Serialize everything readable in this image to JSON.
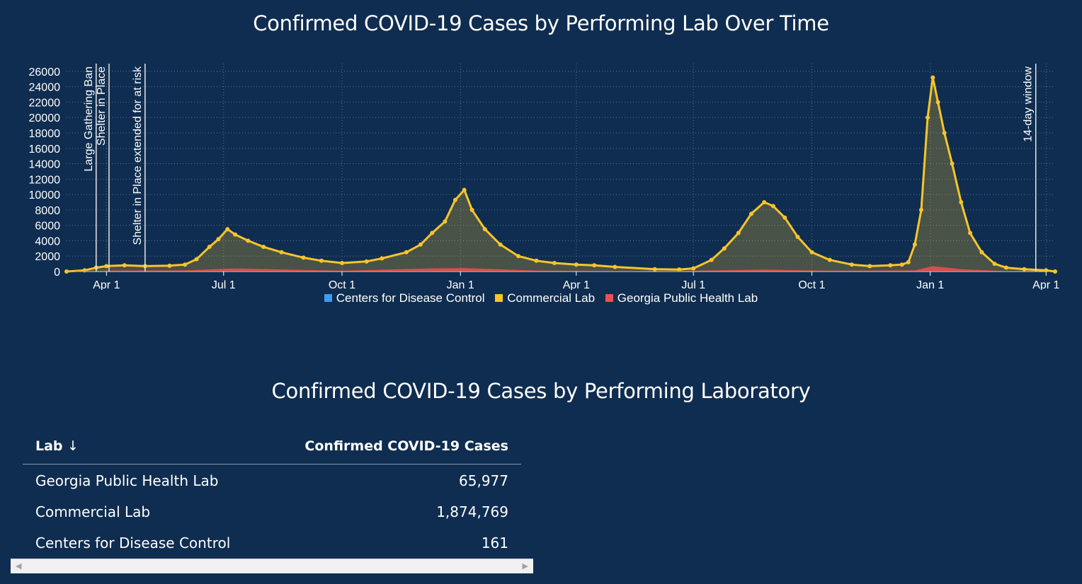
{
  "chart_title": "Confirmed COVID-19 Cases by Performing Lab Over Time",
  "table_title": "Confirmed COVID-19 Cases by Performing Laboratory",
  "chart_data": {
    "type": "area",
    "title": "Confirmed COVID-19 Cases by Performing Lab Over Time",
    "x_ticks": [
      "Apr 1",
      "Jul 1",
      "Oct 1",
      "Jan 1",
      "Apr 1",
      "Jul 1",
      "Oct 1",
      "Jan 1",
      "Apr 1"
    ],
    "y_ticks": [
      "0",
      "2000",
      "4000",
      "6000",
      "8000",
      "10000",
      "12000",
      "14000",
      "16000",
      "18000",
      "20000",
      "22000",
      "24000",
      "26000"
    ],
    "ylim": [
      0,
      27000
    ],
    "xlim": [
      "2020-03-01",
      "2022-04-08"
    ],
    "grid": true,
    "legend_position": "bottom",
    "annotations": [
      {
        "date": "2020-03-24",
        "label": "Large Gathering Ban"
      },
      {
        "date": "2020-04-03",
        "label": "Shelter in Place"
      },
      {
        "date": "2020-05-01",
        "label": "Shelter in Place extended for at risk"
      },
      {
        "date": "2022-03-24",
        "label": "14-day window"
      }
    ],
    "series": [
      {
        "name": "Centers for Disease Control",
        "color": "#3d9df0",
        "points": [
          [
            "2020-03-01",
            0
          ],
          [
            "2022-04-08",
            0
          ]
        ]
      },
      {
        "name": "Commercial Lab",
        "color": "#f7c52b",
        "points": [
          [
            "2020-03-01",
            0
          ],
          [
            "2020-03-15",
            150
          ],
          [
            "2020-03-24",
            500
          ],
          [
            "2020-04-01",
            700
          ],
          [
            "2020-04-15",
            800
          ],
          [
            "2020-05-01",
            700
          ],
          [
            "2020-05-20",
            750
          ],
          [
            "2020-06-01",
            900
          ],
          [
            "2020-06-10",
            1600
          ],
          [
            "2020-06-20",
            3200
          ],
          [
            "2020-06-27",
            4200
          ],
          [
            "2020-07-04",
            5500
          ],
          [
            "2020-07-10",
            4800
          ],
          [
            "2020-07-20",
            4000
          ],
          [
            "2020-08-01",
            3200
          ],
          [
            "2020-08-15",
            2500
          ],
          [
            "2020-09-01",
            1800
          ],
          [
            "2020-09-15",
            1400
          ],
          [
            "2020-10-01",
            1100
          ],
          [
            "2020-10-20",
            1300
          ],
          [
            "2020-11-01",
            1700
          ],
          [
            "2020-11-20",
            2500
          ],
          [
            "2020-12-01",
            3500
          ],
          [
            "2020-12-10",
            5000
          ],
          [
            "2020-12-20",
            6500
          ],
          [
            "2020-12-28",
            9300
          ],
          [
            "2021-01-04",
            10600
          ],
          [
            "2021-01-10",
            8000
          ],
          [
            "2021-01-20",
            5500
          ],
          [
            "2021-02-01",
            3500
          ],
          [
            "2021-02-15",
            2000
          ],
          [
            "2021-03-01",
            1400
          ],
          [
            "2021-03-15",
            1100
          ],
          [
            "2021-04-01",
            900
          ],
          [
            "2021-04-15",
            800
          ],
          [
            "2021-05-01",
            600
          ],
          [
            "2021-06-01",
            300
          ],
          [
            "2021-06-20",
            250
          ],
          [
            "2021-07-01",
            400
          ],
          [
            "2021-07-15",
            1500
          ],
          [
            "2021-07-25",
            3000
          ],
          [
            "2021-08-05",
            5000
          ],
          [
            "2021-08-15",
            7500
          ],
          [
            "2021-08-25",
            9000
          ],
          [
            "2021-09-01",
            8500
          ],
          [
            "2021-09-10",
            7000
          ],
          [
            "2021-09-20",
            4500
          ],
          [
            "2021-10-01",
            2500
          ],
          [
            "2021-10-15",
            1500
          ],
          [
            "2021-11-01",
            900
          ],
          [
            "2021-11-15",
            700
          ],
          [
            "2021-12-01",
            800
          ],
          [
            "2021-12-10",
            900
          ],
          [
            "2021-12-15",
            1200
          ],
          [
            "2021-12-20",
            3500
          ],
          [
            "2021-12-25",
            8000
          ],
          [
            "2021-12-30",
            20000
          ],
          [
            "2022-01-03",
            25200
          ],
          [
            "2022-01-07",
            22000
          ],
          [
            "2022-01-12",
            18000
          ],
          [
            "2022-01-18",
            14000
          ],
          [
            "2022-01-25",
            9000
          ],
          [
            "2022-02-01",
            5000
          ],
          [
            "2022-02-10",
            2500
          ],
          [
            "2022-02-20",
            1000
          ],
          [
            "2022-03-01",
            500
          ],
          [
            "2022-03-15",
            300
          ],
          [
            "2022-04-01",
            150
          ],
          [
            "2022-04-08",
            0
          ]
        ]
      },
      {
        "name": "Georgia Public Health Lab",
        "color": "#e8524f",
        "points": [
          [
            "2020-03-01",
            0
          ],
          [
            "2020-04-01",
            120
          ],
          [
            "2020-06-01",
            150
          ],
          [
            "2020-07-10",
            400
          ],
          [
            "2020-09-01",
            200
          ],
          [
            "2020-10-01",
            100
          ],
          [
            "2020-12-10",
            400
          ],
          [
            "2021-01-04",
            450
          ],
          [
            "2021-03-01",
            120
          ],
          [
            "2021-06-01",
            30
          ],
          [
            "2021-08-25",
            250
          ],
          [
            "2021-10-15",
            100
          ],
          [
            "2021-12-20",
            150
          ],
          [
            "2022-01-03",
            700
          ],
          [
            "2022-01-25",
            300
          ],
          [
            "2022-03-01",
            50
          ],
          [
            "2022-04-08",
            0
          ]
        ]
      }
    ]
  },
  "legend": [
    {
      "label": "Centers for Disease Control",
      "color": "#3d9df0"
    },
    {
      "label": "Commercial Lab",
      "color": "#f7c52b"
    },
    {
      "label": "Georgia Public Health Lab",
      "color": "#e8524f"
    }
  ],
  "table": {
    "headers": {
      "lab": "Lab",
      "sort_icon": "↓",
      "cases": "Confirmed COVID-19 Cases"
    },
    "rows": [
      {
        "lab": "Georgia Public Health Lab",
        "cases": "65,977"
      },
      {
        "lab": "Commercial Lab",
        "cases": "1,874,769"
      },
      {
        "lab": "Centers for Disease Control",
        "cases": "161"
      }
    ]
  },
  "scrollbar": {
    "left_icon": "scroll-left-arrow-icon",
    "right_icon": "scroll-right-arrow-icon"
  }
}
